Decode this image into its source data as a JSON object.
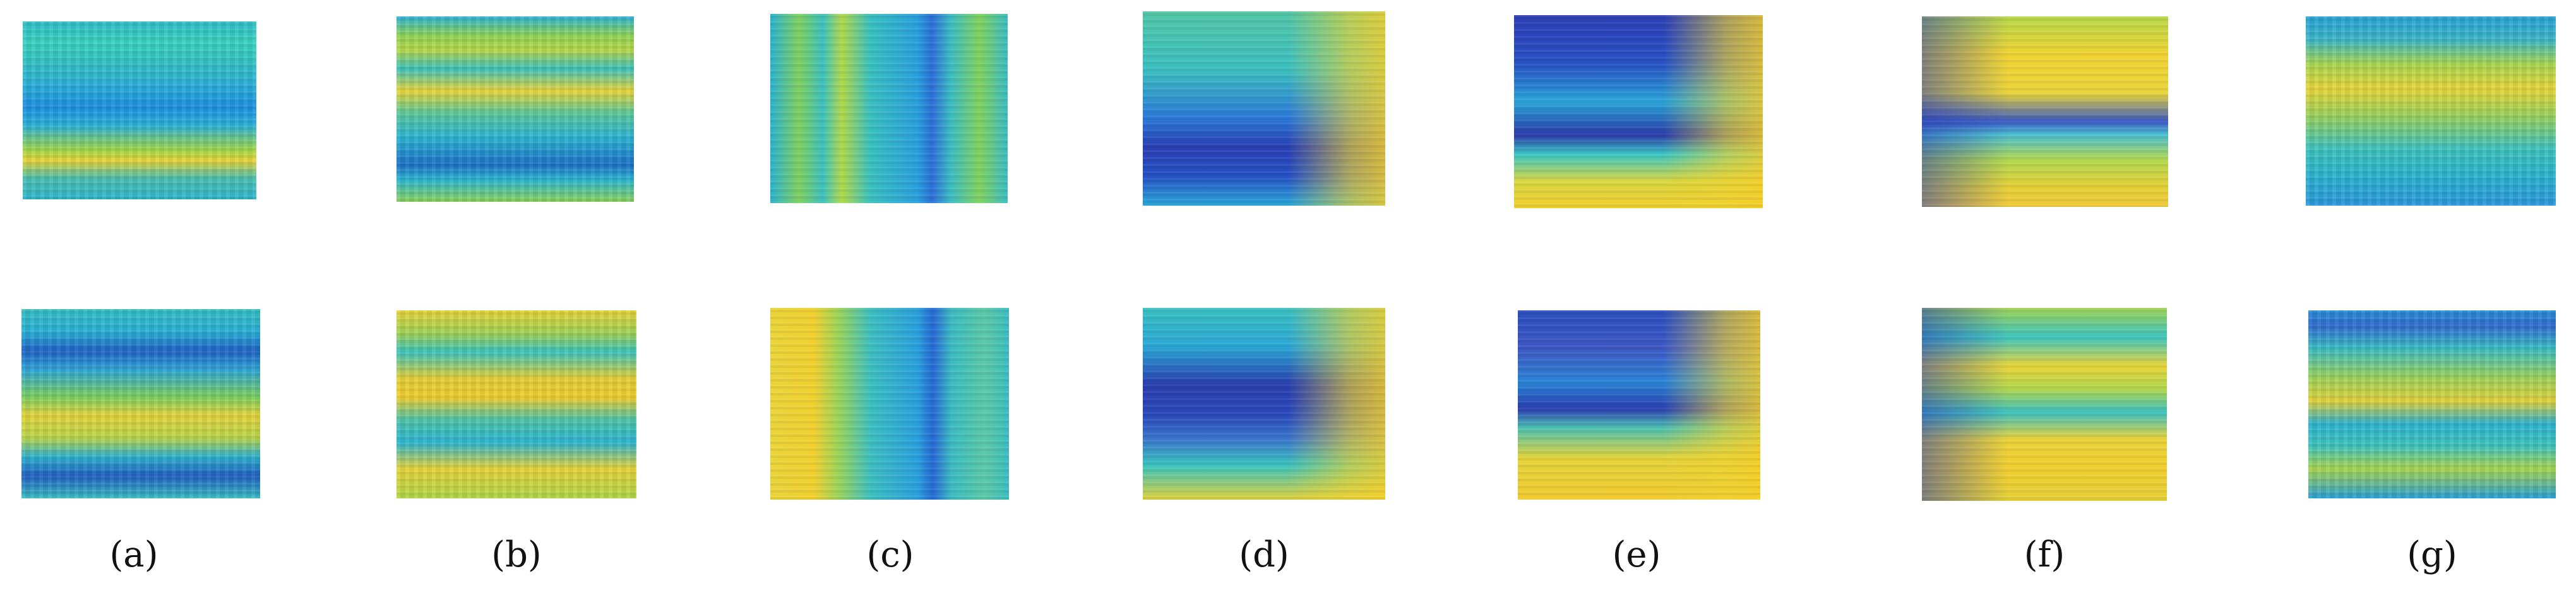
{
  "panels": [
    {
      "caption": "(a)"
    },
    {
      "caption": "(b)"
    },
    {
      "caption": "(c)"
    },
    {
      "caption": "(d)"
    },
    {
      "caption": "(e)"
    },
    {
      "caption": "(f)"
    },
    {
      "caption": "(g)"
    }
  ],
  "colormap": {
    "low": "#2a2f9e",
    "mid_low": "#2a9fdc",
    "mid": "#3cc3bf",
    "mid_high": "#9fd456",
    "high": "#f5d12c"
  }
}
